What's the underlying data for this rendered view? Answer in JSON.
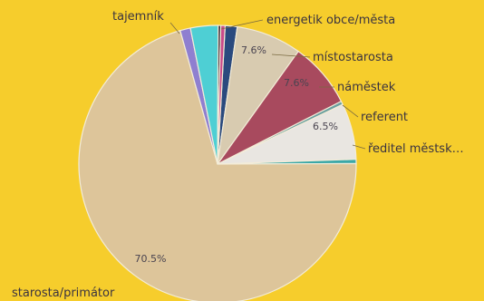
{
  "chart_data": {
    "type": "pie",
    "title": "",
    "slices": [
      {
        "label": "energetik obce/města",
        "value": 1.4,
        "pct_label": "",
        "color": "#2a4a7e"
      },
      {
        "label": "místostarosta",
        "value": 7.6,
        "pct_label": "7.6%",
        "color": "#d8cbb0"
      },
      {
        "label": "náměstek",
        "value": 7.6,
        "pct_label": "7.6%",
        "color": "#a84a5e"
      },
      {
        "label": "referent",
        "value": 0.4,
        "pct_label": "",
        "color": "#6aa0a0"
      },
      {
        "label": "ředitel městsk…",
        "value": 6.5,
        "pct_label": "6.5%",
        "color": "#e9e6e1"
      },
      {
        "label": "",
        "value": 0.5,
        "pct_label": "",
        "color": "#3aa8a8"
      },
      {
        "label": "starosta/primátor",
        "value": 70.5,
        "pct_label": "70.5%",
        "color": "#ddc59a"
      },
      {
        "label": "",
        "value": 1.2,
        "pct_label": "",
        "color": "#8f7fd0"
      },
      {
        "label": "tajemník",
        "value": 3.2,
        "pct_label": "",
        "color": "#4ecfd4"
      },
      {
        "label": "",
        "value": 0.3,
        "pct_label": "",
        "color": "#2c1f30"
      },
      {
        "label": "",
        "value": 0.5,
        "pct_label": "",
        "color": "#c94a8a"
      }
    ]
  }
}
